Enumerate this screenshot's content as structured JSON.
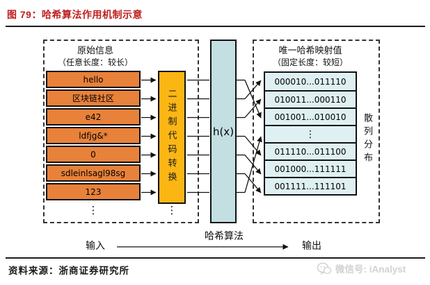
{
  "header": {
    "title": "图 79：哈希算法作用机制示意"
  },
  "diagram": {
    "left_box": {
      "title_line1": "原始信息",
      "title_line2": "（任意长度：较长）",
      "rows": [
        "hello",
        "区块链社区",
        "e42",
        "ldfjg&*",
        "0",
        "sdleinlsagl98sg",
        "123"
      ],
      "ellipsis": "⋮"
    },
    "converter": {
      "label": "二进制代码转换",
      "ellipsis": "⋮"
    },
    "hash_function": {
      "label": "h(x)"
    },
    "right_box": {
      "title_line1": "唯一哈希映射值",
      "title_line2": "（固定长度：较短）",
      "rows": [
        "000010...011110",
        "010011...000110",
        "001001...010010",
        "⋮",
        "011110...011100",
        "001000...111111",
        "001111...111101"
      ],
      "side_label": "散列分布"
    },
    "mapping_source_to_target": [
      [
        0,
        2
      ],
      [
        1,
        0
      ],
      [
        2,
        1
      ],
      [
        3,
        4
      ],
      [
        4,
        5
      ],
      [
        5,
        6
      ],
      [
        6,
        3
      ]
    ],
    "flow": {
      "input_label": "输入",
      "arrow_label": "哈希算法",
      "output_label": "输出"
    }
  },
  "footer": {
    "source": "资料来源：浙商证券研究所",
    "watermark": "微信号: iAnalyst"
  },
  "colors": {
    "title_red": "#bf1e1e",
    "orange_box": "#e8813a",
    "amber_box": "#fbb614",
    "teal_box": "#c3dfe2",
    "pale_blue_box": "#dff0f2",
    "watermark_gray": "#d2d2d2"
  }
}
